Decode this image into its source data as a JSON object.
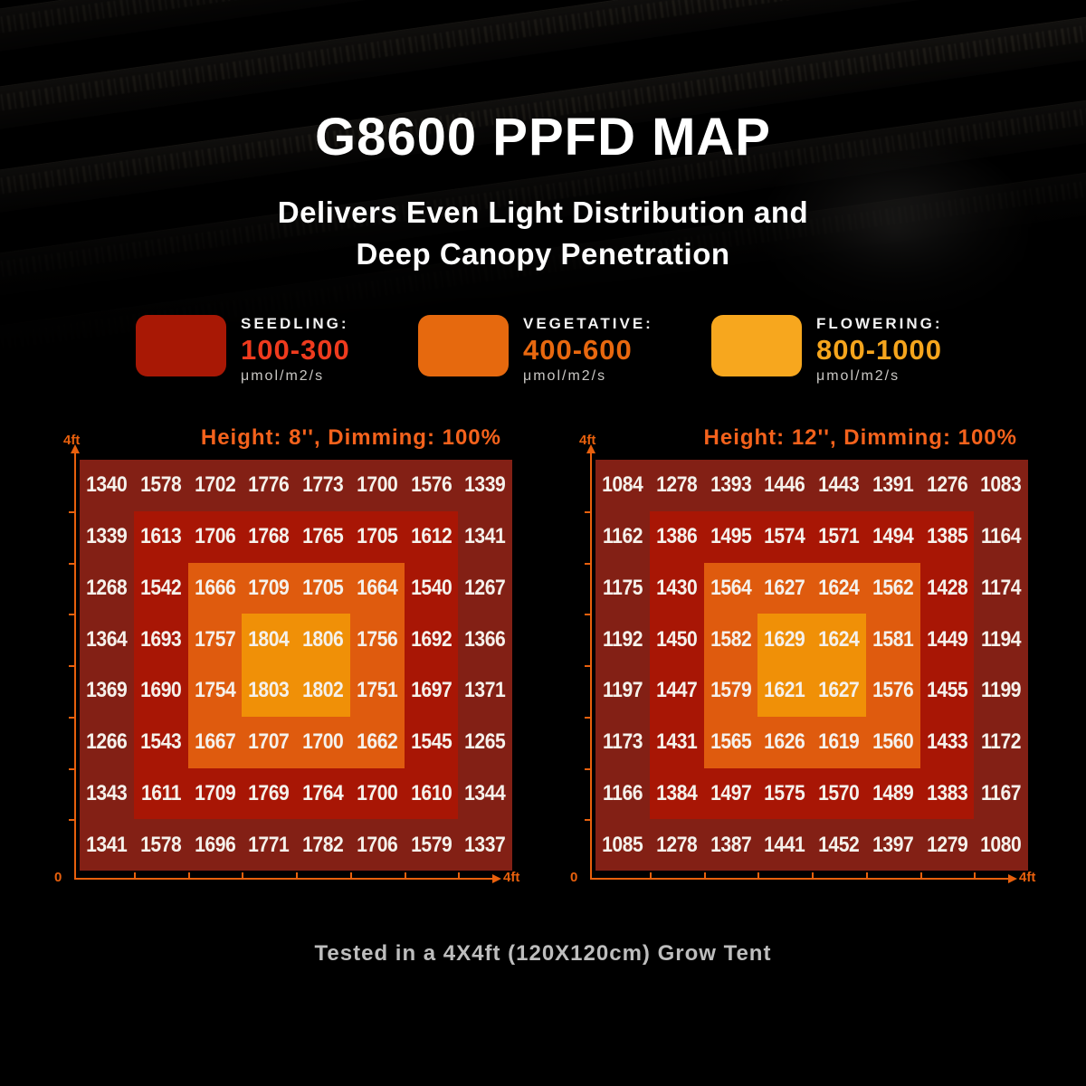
{
  "page": {
    "title": "G8600 PPFD MAP",
    "subtitle_line1": "Delivers Even Light Distribution and",
    "subtitle_line2": "Deep Canopy Penetration",
    "caption": "Tested in a 4X4ft (120X120cm) Grow Tent"
  },
  "legend": {
    "items": [
      {
        "label": "SEEDLING:",
        "range": "100-300",
        "unit": "μmol/m2/s",
        "swatch_color": "#a81805",
        "range_color": "#ef3b1e"
      },
      {
        "label": "VEGETATIVE:",
        "range": "400-600",
        "unit": "μmol/m2/s",
        "swatch_color": "#e6690e",
        "range_color": "#e8680f"
      },
      {
        "label": "FLOWERING:",
        "range": "800-1000",
        "unit": "μmol/m2/s",
        "swatch_color": "#f7a71e",
        "range_color": "#f5a51d"
      }
    ]
  },
  "heat_colors": [
    "#832015",
    "#a81605",
    "#df5b0e",
    "#f09007"
  ],
  "axis_color": "#e8600d",
  "map_title_color": "#f4621c",
  "chart_data": [
    {
      "type": "heatmap",
      "title": "Height: 8'', Dimming: 100%",
      "x_axis": {
        "min_label": "0",
        "max_label": "4ft",
        "range_ft": [
          0,
          4
        ]
      },
      "y_axis": {
        "max_label": "4ft",
        "range_ft": [
          0,
          4
        ]
      },
      "unit": "μmol/m2/s",
      "values": [
        [
          1340,
          1578,
          1702,
          1776,
          1773,
          1700,
          1576,
          1339
        ],
        [
          1339,
          1613,
          1706,
          1768,
          1765,
          1705,
          1612,
          1341
        ],
        [
          1268,
          1542,
          1666,
          1709,
          1705,
          1664,
          1540,
          1267
        ],
        [
          1364,
          1693,
          1757,
          1804,
          1806,
          1756,
          1692,
          1366
        ],
        [
          1369,
          1690,
          1754,
          1803,
          1802,
          1751,
          1697,
          1371
        ],
        [
          1266,
          1543,
          1667,
          1707,
          1700,
          1662,
          1545,
          1265
        ],
        [
          1343,
          1611,
          1709,
          1769,
          1764,
          1700,
          1610,
          1344
        ],
        [
          1341,
          1578,
          1696,
          1771,
          1782,
          1706,
          1579,
          1337
        ]
      ]
    },
    {
      "type": "heatmap",
      "title": "Height: 12'', Dimming: 100%",
      "x_axis": {
        "min_label": "0",
        "max_label": "4ft",
        "range_ft": [
          0,
          4
        ]
      },
      "y_axis": {
        "max_label": "4ft",
        "range_ft": [
          0,
          4
        ]
      },
      "unit": "μmol/m2/s",
      "values": [
        [
          1084,
          1278,
          1393,
          1446,
          1443,
          1391,
          1276,
          1083
        ],
        [
          1162,
          1386,
          1495,
          1574,
          1571,
          1494,
          1385,
          1164
        ],
        [
          1175,
          1430,
          1564,
          1627,
          1624,
          1562,
          1428,
          1174
        ],
        [
          1192,
          1450,
          1582,
          1629,
          1624,
          1581,
          1449,
          1194
        ],
        [
          1197,
          1447,
          1579,
          1621,
          1627,
          1576,
          1455,
          1199
        ],
        [
          1173,
          1431,
          1565,
          1626,
          1619,
          1560,
          1433,
          1172
        ],
        [
          1166,
          1384,
          1497,
          1575,
          1570,
          1489,
          1383,
          1167
        ],
        [
          1085,
          1278,
          1387,
          1441,
          1452,
          1397,
          1279,
          1080
        ]
      ]
    }
  ]
}
